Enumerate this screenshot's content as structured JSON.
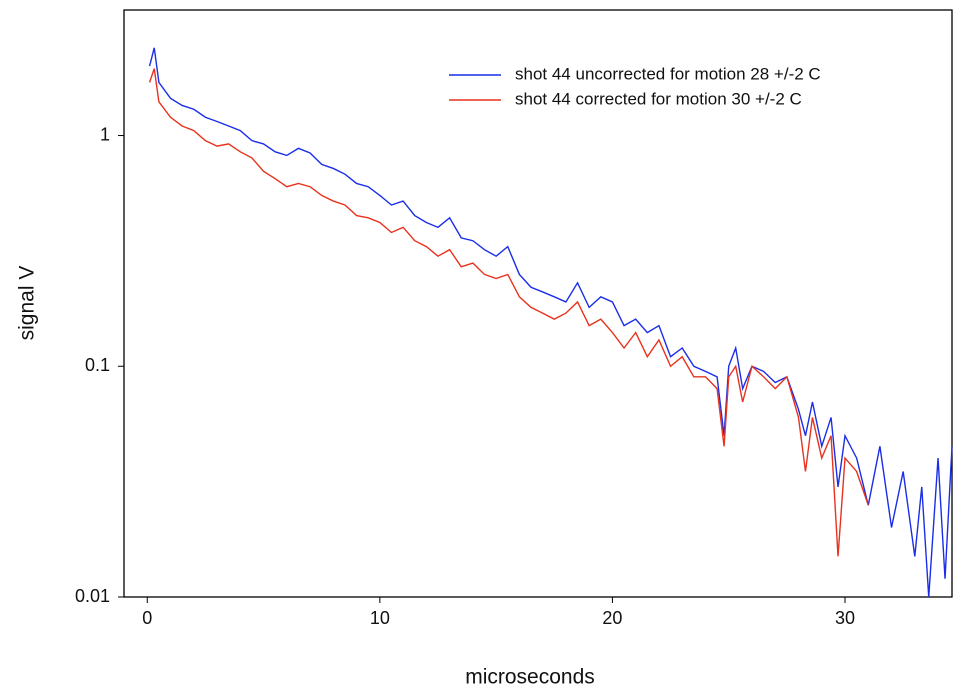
{
  "chart_data": {
    "type": "line",
    "x_label": "microseconds",
    "y_label": "signal V",
    "xlim": [
      -1,
      34.6
    ],
    "xticks": [
      0,
      10,
      20,
      30
    ],
    "ylim": [
      0.01,
      3.5
    ],
    "yticks": [
      0.01,
      0.1,
      1
    ],
    "y_log": true,
    "legend": "upper right",
    "series": [
      {
        "name": "shot 44 uncorrected for motion 28 +/-2 C",
        "color": "#1a2ee8",
        "x": [
          0.1,
          0.3,
          0.5,
          1,
          1.5,
          2,
          2.5,
          3,
          3.5,
          4,
          4.5,
          5,
          5.5,
          6,
          6.5,
          7,
          7.5,
          8,
          8.5,
          9,
          9.5,
          10,
          10.5,
          11,
          11.5,
          12,
          12.5,
          13,
          13.5,
          14,
          14.5,
          15,
          15.5,
          16,
          16.5,
          17,
          17.5,
          18,
          18.5,
          19,
          19.5,
          20,
          20.5,
          21,
          21.5,
          22,
          22.5,
          23,
          23.5,
          24,
          24.5,
          24.8,
          25,
          25.3,
          25.6,
          26,
          26.5,
          27,
          27.5,
          28,
          28.3,
          28.6,
          29,
          29.4,
          29.7,
          30,
          30.5,
          31,
          31.5,
          32,
          32.5,
          33,
          33.3,
          33.6,
          34,
          34.3,
          34.6
        ],
        "values": [
          2.0,
          2.4,
          1.7,
          1.45,
          1.35,
          1.3,
          1.2,
          1.15,
          1.1,
          1.05,
          0.95,
          0.92,
          0.85,
          0.82,
          0.88,
          0.84,
          0.75,
          0.72,
          0.68,
          0.62,
          0.6,
          0.55,
          0.5,
          0.52,
          0.45,
          0.42,
          0.4,
          0.44,
          0.36,
          0.35,
          0.32,
          0.3,
          0.33,
          0.25,
          0.22,
          0.21,
          0.2,
          0.19,
          0.23,
          0.18,
          0.2,
          0.19,
          0.15,
          0.16,
          0.14,
          0.15,
          0.11,
          0.12,
          0.1,
          0.095,
          0.09,
          0.05,
          0.1,
          0.12,
          0.08,
          0.1,
          0.095,
          0.085,
          0.09,
          0.065,
          0.05,
          0.07,
          0.045,
          0.06,
          0.03,
          0.05,
          0.04,
          0.025,
          0.045,
          0.02,
          0.035,
          0.015,
          0.03,
          0.01,
          0.04,
          0.012,
          0.045
        ]
      },
      {
        "name": "shot 44 corrected for motion  30 +/-2 C",
        "color": "#e8321e",
        "x": [
          0.1,
          0.3,
          0.5,
          1,
          1.5,
          2,
          2.5,
          3,
          3.5,
          4,
          4.5,
          5,
          5.5,
          6,
          6.5,
          7,
          7.5,
          8,
          8.5,
          9,
          9.5,
          10,
          10.5,
          11,
          11.5,
          12,
          12.5,
          13,
          13.5,
          14,
          14.5,
          15,
          15.5,
          16,
          16.5,
          17,
          17.5,
          18,
          18.5,
          19,
          19.5,
          20,
          20.5,
          21,
          21.5,
          22,
          22.5,
          23,
          23.5,
          24,
          24.5,
          24.8,
          25,
          25.3,
          25.6,
          26,
          26.5,
          27,
          27.5,
          28,
          28.3,
          28.6,
          29,
          29.4,
          29.7,
          30,
          30.5,
          31
        ],
        "values": [
          1.7,
          1.95,
          1.4,
          1.2,
          1.1,
          1.05,
          0.95,
          0.9,
          0.92,
          0.85,
          0.8,
          0.7,
          0.65,
          0.6,
          0.62,
          0.6,
          0.55,
          0.52,
          0.5,
          0.45,
          0.44,
          0.42,
          0.38,
          0.4,
          0.35,
          0.33,
          0.3,
          0.32,
          0.27,
          0.28,
          0.25,
          0.24,
          0.25,
          0.2,
          0.18,
          0.17,
          0.16,
          0.17,
          0.19,
          0.15,
          0.16,
          0.14,
          0.12,
          0.14,
          0.11,
          0.13,
          0.1,
          0.11,
          0.09,
          0.09,
          0.08,
          0.045,
          0.09,
          0.1,
          0.07,
          0.1,
          0.09,
          0.08,
          0.09,
          0.06,
          0.035,
          0.06,
          0.04,
          0.05,
          0.015,
          0.04,
          0.035,
          0.025
        ]
      }
    ]
  }
}
